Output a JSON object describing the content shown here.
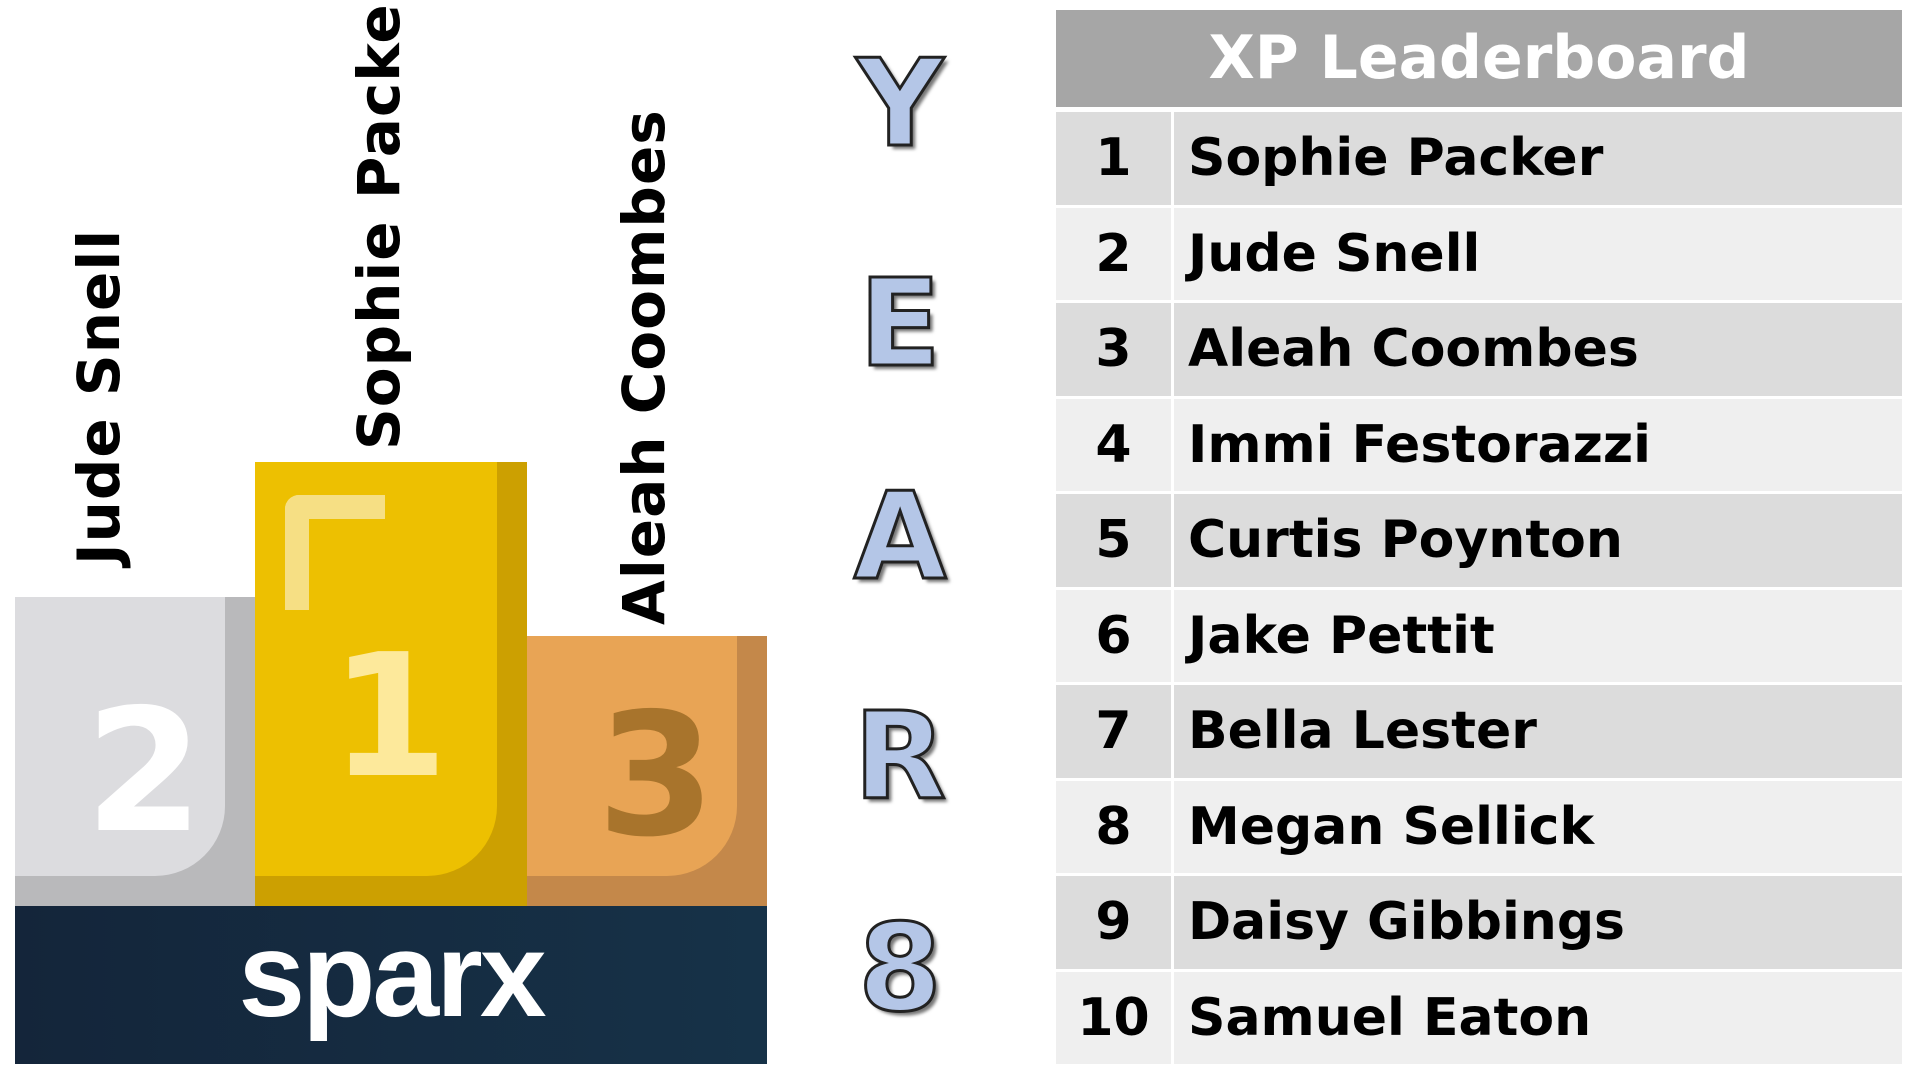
{
  "podium": {
    "first": {
      "place": "1",
      "name": "Sophie Packer"
    },
    "second": {
      "place": "2",
      "name": "Jude Snell"
    },
    "third": {
      "place": "3",
      "name": "Aleah Coombes"
    },
    "logo": "sparx"
  },
  "side_title": [
    "Y",
    "E",
    "A",
    "R",
    "8"
  ],
  "leaderboard": {
    "title": "XP Leaderboard",
    "rows": [
      {
        "rank": "1",
        "name": "Sophie Packer"
      },
      {
        "rank": "2",
        "name": "Jude Snell"
      },
      {
        "rank": "3",
        "name": "Aleah Coombes"
      },
      {
        "rank": "4",
        "name": "Immi Festorazzi"
      },
      {
        "rank": "5",
        "name": "Curtis Poynton"
      },
      {
        "rank": "6",
        "name": "Jake Pettit"
      },
      {
        "rank": "7",
        "name": "Bella Lester"
      },
      {
        "rank": "8",
        "name": "Megan Sellick"
      },
      {
        "rank": "9",
        "name": "Daisy Gibbings"
      },
      {
        "rank": "10",
        "name": "Samuel Eaton"
      }
    ]
  },
  "colors": {
    "gold": "#edc001",
    "silver": "#dcdcdf",
    "bronze": "#e8a455",
    "base": "#14283d",
    "header": "#a6a6a6",
    "letters": "#b4c6e7"
  }
}
